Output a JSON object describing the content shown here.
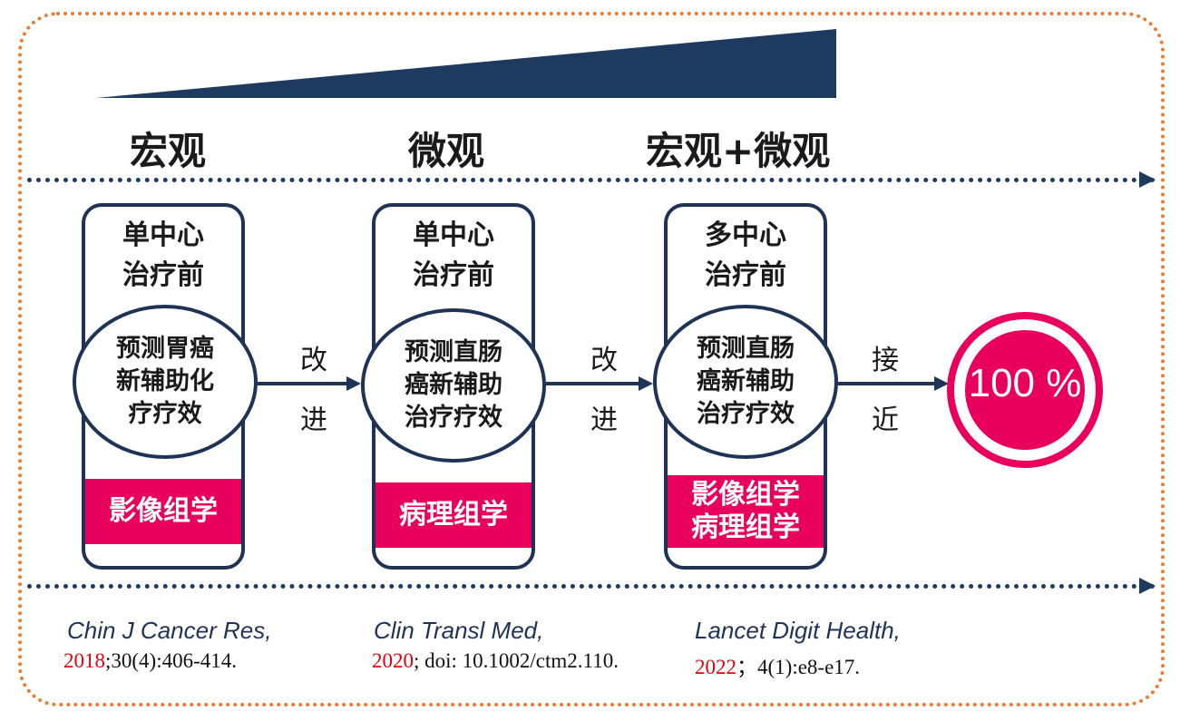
{
  "headings": {
    "macro": "宏观",
    "micro": "微观",
    "combined": "宏观+微观"
  },
  "steps": [
    {
      "center": "单中心",
      "timing": "治疗前",
      "circle_lines": [
        "预测胃癌",
        "新辅助化",
        "疗疗效"
      ],
      "tag_lines": [
        "影像组学"
      ]
    },
    {
      "center": "单中心",
      "timing": "治疗前",
      "circle_lines": [
        "预测直肠",
        "癌新辅助",
        "治疗疗效"
      ],
      "tag_lines": [
        "病理组学"
      ]
    },
    {
      "center": "多中心",
      "timing": "治疗前",
      "circle_lines": [
        "预测直肠",
        "癌新辅助",
        "治疗疗效"
      ],
      "tag_lines": [
        "影像组学",
        "病理组学"
      ]
    }
  ],
  "connectors": [
    {
      "top": "改",
      "bottom": "进"
    },
    {
      "top": "改",
      "bottom": "进"
    },
    {
      "top": "接",
      "bottom": "近"
    }
  ],
  "goal": {
    "label": "100 %"
  },
  "references": [
    {
      "journal": "Chin J Cancer Res,",
      "year": "2018",
      "detail": ";30(4):406-414."
    },
    {
      "journal": "Clin Transl Med,",
      "year": "2020",
      "detail": "; doi: 10.1002/ctm2.110."
    },
    {
      "journal": "Lancet Digit  Health,",
      "year": "2022",
      "detail": "；4(1):e8-e17."
    }
  ],
  "colors": {
    "navy": "#1e3356",
    "accent_pink": "#e8005c",
    "frame_orange": "#ec7a30",
    "year_red": "#e8000b"
  }
}
